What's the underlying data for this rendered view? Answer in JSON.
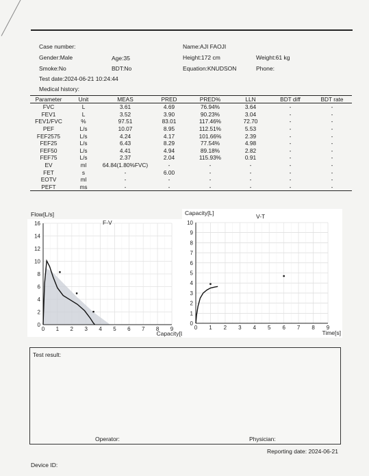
{
  "header": {
    "case_number_label": "Case number:",
    "name": "Name:AJI FAOJI",
    "gender": "Gender:Male",
    "age": "Age:35",
    "height": "Height:172 cm",
    "weight": "Weight:61 kg",
    "smoke": "Smoke:No",
    "bdt": "BDT:No",
    "equation": "Equation:KNUDSON",
    "phone": "Phone:",
    "test_date": "Test date:2024-06-21 10:24:44",
    "medical_history": "Medical history:"
  },
  "table": {
    "columns": [
      "Parameter",
      "Unit",
      "MEAS",
      "PRED",
      "PRED%",
      "LLN",
      "BDT diff",
      "BDT rate"
    ],
    "rows": [
      [
        "FVC",
        "L",
        "3.61",
        "4.69",
        "76.94%",
        "3.64",
        "-",
        "-"
      ],
      [
        "FEV1",
        "L",
        "3.52",
        "3.90",
        "90.23%",
        "3.04",
        "-",
        "-"
      ],
      [
        "FEV1/FVC",
        "%",
        "97.51",
        "83.01",
        "117.46%",
        "72.70",
        "-",
        "-"
      ],
      [
        "PEF",
        "L/s",
        "10.07",
        "8.95",
        "112.51%",
        "5.53",
        "-",
        "-"
      ],
      [
        "FEF2575",
        "L/s",
        "4.24",
        "4.17",
        "101.66%",
        "2.39",
        "-",
        "-"
      ],
      [
        "FEF25",
        "L/s",
        "6.43",
        "8.29",
        "77.54%",
        "4.98",
        "-",
        "-"
      ],
      [
        "FEF50",
        "L/s",
        "4.41",
        "4.94",
        "89.18%",
        "2.82",
        "-",
        "-"
      ],
      [
        "FEF75",
        "L/s",
        "2.37",
        "2.04",
        "115.93%",
        "0.91",
        "-",
        "-"
      ],
      [
        "EV",
        "ml",
        "64.84(1.80%FVC)",
        "-",
        "-",
        "-",
        "-",
        "-"
      ],
      [
        "FET",
        "s",
        "-",
        "6.00",
        "-",
        "-",
        "-",
        "-"
      ],
      [
        "EOTV",
        "ml",
        "-",
        "-",
        "-",
        "-",
        "-",
        "-"
      ],
      [
        "PEFT",
        "ms",
        "-",
        "-",
        "-",
        "-",
        "-",
        "-"
      ]
    ]
  },
  "chart_data": [
    {
      "type": "line",
      "title": "F-V",
      "xlabel": "Capacity[L]",
      "ylabel": "Flow[L/s]",
      "xlim": [
        0,
        9
      ],
      "ylim": [
        0,
        16
      ],
      "x_ticks": [
        "0",
        "1",
        "2",
        "3",
        "4",
        "5",
        "6",
        "7",
        "8",
        "9"
      ],
      "y_ticks": [
        "16",
        "14",
        "12",
        "10",
        "8",
        "6",
        "4",
        "2",
        "0"
      ],
      "grid": true,
      "series": [
        {
          "x": [
            0,
            0.1,
            0.25,
            0.45,
            0.7,
            1.0,
            1.4,
            1.9,
            2.4,
            2.9,
            3.3,
            3.5,
            3.61
          ],
          "y": [
            0,
            6.5,
            10.07,
            9.2,
            7.5,
            5.8,
            4.6,
            3.9,
            3.2,
            2.2,
            1.0,
            0.3,
            0
          ]
        }
      ],
      "predicted_area": {
        "x": [
          0,
          0.15,
          0.6,
          1.3,
          2.3,
          3.5,
          4.69
        ],
        "y": [
          0,
          8.95,
          8.4,
          6.8,
          4.5,
          2.0,
          0
        ]
      },
      "pred_points": {
        "x": [
          1.17,
          2.35,
          3.52
        ],
        "y": [
          8.29,
          4.94,
          2.04
        ]
      }
    },
    {
      "type": "line",
      "title": "V-T",
      "xlabel": "Time[s]",
      "ylabel": "Capacity[L]",
      "xlim": [
        0,
        9
      ],
      "ylim": [
        0,
        10
      ],
      "x_ticks": [
        "0",
        "1",
        "2",
        "3",
        "4",
        "5",
        "6",
        "7",
        "8",
        "9"
      ],
      "y_ticks": [
        "10",
        "9",
        "8",
        "7",
        "6",
        "5",
        "4",
        "3",
        "2",
        "1",
        "0"
      ],
      "grid": true,
      "series": [
        {
          "x": [
            0,
            0.05,
            0.15,
            0.3,
            0.5,
            0.75,
            1.0,
            1.3,
            1.5
          ],
          "y": [
            0,
            0.8,
            1.7,
            2.5,
            3.0,
            3.3,
            3.5,
            3.6,
            3.65
          ]
        }
      ],
      "pred_points": {
        "x": [
          1.0,
          6.0
        ],
        "y": [
          3.9,
          4.69
        ]
      }
    }
  ],
  "result": {
    "test_result_label": "Test result:",
    "operator_label": "Operator:",
    "physician_label": "Physician:",
    "reporting_date": "Reporting date: 2024-06-21"
  },
  "footer": {
    "device_id": "Device ID:"
  }
}
